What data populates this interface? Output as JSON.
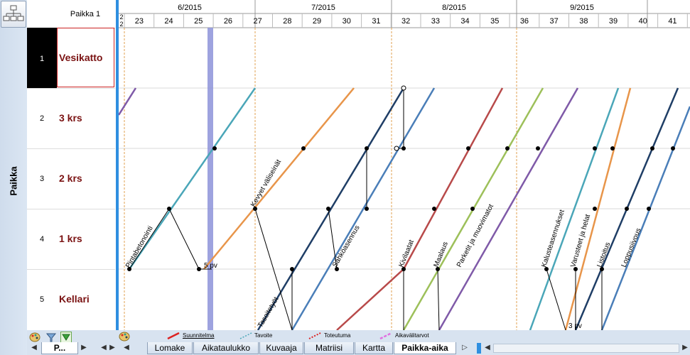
{
  "sidebar": {
    "title": "Paikka"
  },
  "header": {
    "location_label": "Paikka 1",
    "small_digits": [
      "2",
      "2"
    ]
  },
  "months": [
    "6/2015",
    "7/2015",
    "8/2015",
    "9/2015"
  ],
  "weeks": [
    "23",
    "24",
    "25",
    "26",
    "27",
    "28",
    "29",
    "30",
    "31",
    "32",
    "33",
    "34",
    "35",
    "36",
    "37",
    "38",
    "39",
    "40",
    "41"
  ],
  "rows": [
    {
      "num": "1",
      "name": "Vesikatto"
    },
    {
      "num": "2",
      "name": "3 krs"
    },
    {
      "num": "3",
      "name": "2 krs"
    },
    {
      "num": "4",
      "name": "1 krs"
    },
    {
      "num": "5",
      "name": "Kellari"
    }
  ],
  "task_labels": [
    "Pintabetonointi",
    "Kevyet väliseinät",
    "Tasoitetyöt",
    "Sähköasennus",
    "Kivilaatat",
    "Maalaus",
    "Parketit ja muovimatot",
    "Kalusteasennukset",
    "Varusteet ja helat",
    "Listoitus",
    "Loppusiivous"
  ],
  "buffer_labels": [
    "5 pv",
    "3 pv"
  ],
  "legend": {
    "planned": "Suunnitelma",
    "target": "Tavoite",
    "actual": "Toteutuma",
    "interval": "Aikavälitarvot"
  },
  "tabs": {
    "sheet": "P...",
    "items": [
      "Lomake",
      "Aikataulukko",
      "Kuvaaja",
      "Matriisi",
      "Kartta",
      "Paikka-aika"
    ],
    "active": "Paikka-aika"
  },
  "colors": {
    "accent": "#2f8fe0",
    "row_name": "#7a1212",
    "selected_row": "#000000",
    "today_line": "#8d93d9",
    "planned": "#dd2222"
  },
  "icons": [
    "hierarchy-icon",
    "palette-icon",
    "filter-icon",
    "funnel-icon"
  ]
}
